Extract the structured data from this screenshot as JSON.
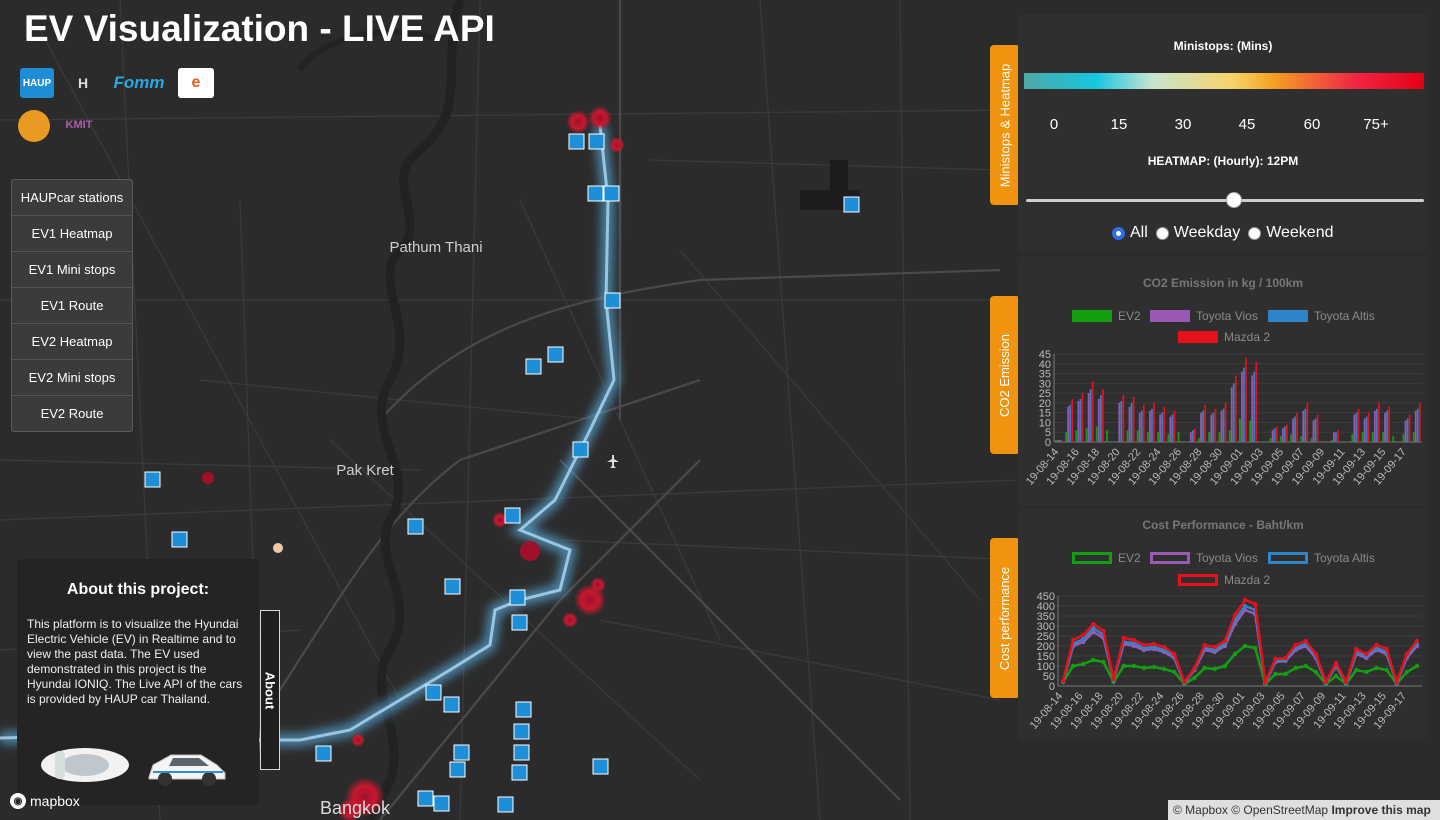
{
  "header": {
    "title": "EV Visualization - LIVE API"
  },
  "logos": [
    {
      "name": "haup-logo",
      "text": "HAUP"
    },
    {
      "name": "hyundai-logo",
      "text": "H"
    },
    {
      "name": "fomm-logo",
      "text": "Fomm"
    },
    {
      "name": "egat-logo",
      "text": "e"
    },
    {
      "name": "university-seal-logo",
      "text": ""
    },
    {
      "name": "kmit-logo",
      "text": "KMIT"
    }
  ],
  "layers": [
    {
      "id": "haupcar-stations",
      "label": "HAUPcar stations"
    },
    {
      "id": "ev1-heatmap",
      "label": "EV1 Heatmap"
    },
    {
      "id": "ev1-mini-stops",
      "label": "EV1 Mini stops"
    },
    {
      "id": "ev1-route",
      "label": "EV1 Route"
    },
    {
      "id": "ev2-heatmap",
      "label": "EV2 Heatmap"
    },
    {
      "id": "ev2-mini-stops",
      "label": "EV2 Mini stops"
    },
    {
      "id": "ev2-route",
      "label": "EV2 Route"
    }
  ],
  "about": {
    "title": "About this project:",
    "text": "This platform is to visualize the Hyundai Electric Vehicle (EV) in Realtime and to view the past data. The EV used demonstrated in this project is the Hyundai IONIQ. The Live API of the cars is provided by HAUP car Thailand.",
    "tab_label": "About"
  },
  "map": {
    "place_labels": [
      {
        "name": "Pathum Thani"
      },
      {
        "name": "Pak Kret"
      },
      {
        "name": "Bangkok"
      }
    ],
    "attribution": {
      "mapbox": "© Mapbox",
      "osm": "© OpenStreetMap",
      "improve": "Improve this map"
    },
    "logo_text": "mapbox",
    "colors": {
      "route": "#6aa8d0",
      "heat_hot": "#a0102a",
      "station": "#1e8fd6"
    }
  },
  "ministops_panel": {
    "tab_label": "Ministops & Heatmap",
    "title": "Ministops: (Mins)",
    "scale_labels": [
      "0",
      "15",
      "30",
      "45",
      "60",
      "75+"
    ],
    "heatmap_label": "HEATMAP: (Hourly): 12PM",
    "slider_value_hour": 12,
    "slider_range": [
      0,
      23
    ],
    "radio_options": [
      "All",
      "Weekday",
      "Weekend"
    ],
    "radio_selected": "All"
  },
  "co2_panel": {
    "tab_label": "CO2 Emission"
  },
  "cost_panel": {
    "tab_label": "Cost performance"
  },
  "chart_data": [
    {
      "type": "bar",
      "title": "CO2 Emission in kg / 100km",
      "xlabel": "",
      "ylabel": "",
      "ylim": [
        0,
        45
      ],
      "yticks": [
        "0",
        "5",
        "10",
        "15",
        "20",
        "25",
        "30",
        "35",
        "40",
        "45"
      ],
      "categories": [
        "19-08-14",
        "19-08-15",
        "19-08-16",
        "19-08-17",
        "19-08-18",
        "19-08-19",
        "19-08-20",
        "19-08-21",
        "19-08-22",
        "19-08-23",
        "19-08-24",
        "19-08-25",
        "19-08-26",
        "19-08-27",
        "19-08-28",
        "19-08-29",
        "19-08-30",
        "19-08-31",
        "19-09-01",
        "19-09-02",
        "19-09-03",
        "19-09-04",
        "19-09-05",
        "19-09-06",
        "19-09-07",
        "19-09-08",
        "19-09-09",
        "19-09-10",
        "19-09-11",
        "19-09-12",
        "19-09-13",
        "19-09-14",
        "19-09-15",
        "19-09-16",
        "19-09-17",
        "19-09-18"
      ],
      "tick_labels": [
        "19-08-14",
        "19-08-16",
        "19-08-18",
        "19-08-20",
        "19-08-22",
        "19-08-24",
        "19-08-26",
        "19-08-28",
        "19-08-30",
        "19-09-01",
        "19-09-03",
        "19-09-05",
        "19-09-07",
        "19-09-09",
        "19-09-11",
        "19-09-13",
        "19-09-15",
        "19-09-17"
      ],
      "series": [
        {
          "name": "EV2",
          "color": "#13a010",
          "values": [
            1,
            5,
            6,
            7,
            8,
            6,
            0,
            6,
            6,
            5,
            5,
            4,
            5,
            0,
            2,
            5,
            5,
            6,
            12,
            11,
            0,
            2,
            3,
            4,
            3,
            2,
            0,
            1,
            0,
            4,
            5,
            5,
            5,
            3,
            4,
            5
          ]
        },
        {
          "name": "Toyota Vios",
          "color": "#9b59b6",
          "values": [
            1,
            18,
            21,
            25,
            22,
            0,
            20,
            18,
            15,
            16,
            14,
            13,
            0,
            5,
            15,
            14,
            16,
            28,
            36,
            34,
            0,
            6,
            7,
            12,
            16,
            11,
            0,
            5,
            0,
            14,
            12,
            16,
            15,
            0,
            11,
            16
          ]
        },
        {
          "name": "Toyota Altis",
          "color": "#2e86c8",
          "values": [
            1,
            19,
            22,
            27,
            24,
            0,
            21,
            20,
            16,
            17,
            15,
            14,
            0,
            6,
            16,
            15,
            17,
            30,
            38,
            36,
            0,
            7,
            8,
            13,
            17,
            12,
            0,
            5,
            0,
            15,
            13,
            17,
            16,
            0,
            12,
            17
          ]
        },
        {
          "name": "Mazda 2",
          "color": "#e8101a",
          "values": [
            1,
            22,
            25,
            31,
            27,
            0,
            24,
            23,
            19,
            20,
            18,
            16,
            0,
            7,
            19,
            17,
            20,
            34,
            43,
            41,
            0,
            8,
            9,
            15,
            20,
            14,
            0,
            6,
            0,
            17,
            15,
            20,
            18,
            0,
            14,
            20
          ]
        }
      ]
    },
    {
      "type": "line",
      "title": "Cost Performance - Baht/km",
      "xlabel": "",
      "ylabel": "",
      "ylim": [
        0,
        450
      ],
      "yticks": [
        "0",
        "50",
        "100",
        "150",
        "200",
        "250",
        "300",
        "350",
        "400",
        "450"
      ],
      "categories": [
        "19-08-14",
        "19-08-15",
        "19-08-16",
        "19-08-17",
        "19-08-18",
        "19-08-19",
        "19-08-20",
        "19-08-21",
        "19-08-22",
        "19-08-23",
        "19-08-24",
        "19-08-25",
        "19-08-26",
        "19-08-27",
        "19-08-28",
        "19-08-29",
        "19-08-30",
        "19-08-31",
        "19-09-01",
        "19-09-02",
        "19-09-03",
        "19-09-04",
        "19-09-05",
        "19-09-06",
        "19-09-07",
        "19-09-08",
        "19-09-09",
        "19-09-10",
        "19-09-11",
        "19-09-12",
        "19-09-13",
        "19-09-14",
        "19-09-15",
        "19-09-16",
        "19-09-17",
        "19-09-18"
      ],
      "tick_labels": [
        "19-08-14",
        "19-08-16",
        "19-08-18",
        "19-08-20",
        "19-08-22",
        "19-08-24",
        "19-08-26",
        "19-08-28",
        "19-08-30",
        "19-09-01",
        "19-09-03",
        "19-09-05",
        "19-09-07",
        "19-09-09",
        "19-09-11",
        "19-09-13",
        "19-09-15",
        "19-09-17"
      ],
      "series": [
        {
          "name": "EV2",
          "color": "#13a010",
          "values": [
            20,
            100,
            110,
            130,
            120,
            20,
            100,
            100,
            90,
            95,
            85,
            70,
            10,
            40,
            90,
            85,
            100,
            160,
            200,
            190,
            10,
            60,
            60,
            90,
            100,
            70,
            10,
            50,
            10,
            80,
            70,
            90,
            80,
            10,
            70,
            100
          ]
        },
        {
          "name": "Toyota Vios",
          "color": "#9b59b6",
          "values": [
            20,
            200,
            220,
            270,
            240,
            30,
            210,
            200,
            180,
            185,
            170,
            140,
            15,
            80,
            180,
            170,
            200,
            310,
            380,
            360,
            15,
            120,
            125,
            180,
            200,
            140,
            15,
            100,
            15,
            160,
            140,
            180,
            160,
            15,
            140,
            200
          ]
        },
        {
          "name": "Toyota Altis",
          "color": "#2e86c8",
          "values": [
            20,
            210,
            235,
            290,
            255,
            30,
            220,
            215,
            190,
            195,
            180,
            150,
            15,
            85,
            190,
            180,
            210,
            330,
            400,
            380,
            15,
            125,
            130,
            190,
            210,
            150,
            15,
            105,
            15,
            170,
            150,
            190,
            170,
            15,
            150,
            210
          ]
        },
        {
          "name": "Mazda 2",
          "color": "#e8101a",
          "values": [
            25,
            230,
            255,
            310,
            275,
            35,
            240,
            230,
            205,
            210,
            195,
            160,
            20,
            90,
            205,
            195,
            225,
            355,
            430,
            410,
            20,
            135,
            140,
            205,
            225,
            160,
            20,
            115,
            20,
            185,
            160,
            205,
            185,
            20,
            160,
            225
          ]
        }
      ]
    }
  ]
}
